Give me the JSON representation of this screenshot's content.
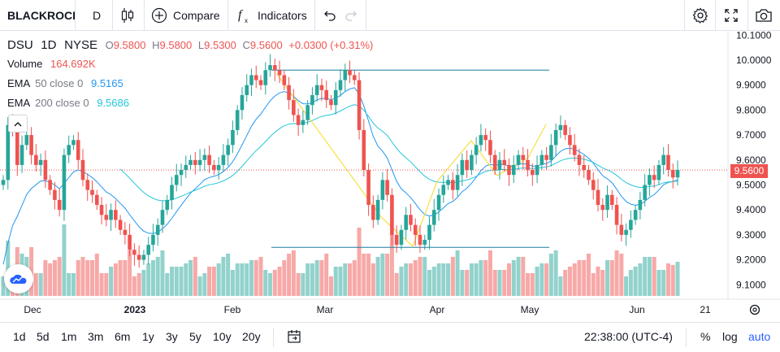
{
  "toolbar": {
    "symbol_search": "BLACKROCI",
    "interval": "D",
    "compare": "Compare",
    "indicators": "Indicators",
    "icons": [
      "candle-style-icon",
      "plus-circle-icon",
      "fx-icon",
      "undo-icon",
      "redo-icon",
      "gear-icon",
      "fullscreen-icon",
      "camera-icon"
    ]
  },
  "legend": {
    "symbol": "DSU",
    "interval": "1D",
    "exchange": "NYSE",
    "open_label": "O",
    "open": "9.5800",
    "high_label": "H",
    "high": "9.5800",
    "low_label": "L",
    "low": "9.5300",
    "close_label": "C",
    "close": "9.5600",
    "change": "+0.0300 (+0.31%)",
    "volume_label": "Volume",
    "volume": "164.692K",
    "ema50_label": "EMA",
    "ema50_params": "50 close 0",
    "ema50_value": "9.5165",
    "ema200_label": "EMA",
    "ema200_params": "200 close 0",
    "ema200_value": "9.5686"
  },
  "price_axis": {
    "ticks": [
      "10.1000",
      "10.0000",
      "9.9000",
      "9.8000",
      "9.7000",
      "9.6000",
      "9.5000",
      "9.4000",
      "9.3000",
      "9.2000",
      "9.1000"
    ],
    "last_price": "9.5600"
  },
  "time_axis": {
    "ticks": [
      "Dec",
      "2023",
      "Feb",
      "Mar",
      "Apr",
      "May",
      "Jun",
      "21"
    ]
  },
  "bottombar": {
    "ranges": [
      "1d",
      "5d",
      "1m",
      "3m",
      "6m",
      "1y",
      "3y",
      "5y",
      "10y",
      "20y"
    ],
    "time": "22:38:00 (UTC-4)",
    "percent": "%",
    "log": "log",
    "auto": "auto"
  },
  "colors": {
    "up": "#26a69a",
    "down": "#ef5350",
    "ema50": "#2196f3",
    "ema200": "#26c6da",
    "accent": "#2962ff"
  },
  "chart_data": {
    "type": "candlestick",
    "symbol": "DSU",
    "ylim": [
      9.05,
      10.13
    ],
    "x_range": [
      "Nov 2022",
      "Jun 2023"
    ],
    "last_price": 9.56,
    "horizontal_lines": [
      9.96,
      9.25
    ],
    "closes": [
      9.52,
      9.74,
      9.72,
      9.58,
      9.66,
      9.7,
      9.62,
      9.58,
      9.6,
      9.52,
      9.48,
      9.44,
      9.4,
      9.62,
      9.66,
      9.68,
      9.6,
      9.52,
      9.48,
      9.46,
      9.42,
      9.38,
      9.36,
      9.4,
      9.36,
      9.32,
      9.3,
      9.24,
      9.22,
      9.2,
      9.22,
      9.26,
      9.3,
      9.34,
      9.4,
      9.44,
      9.5,
      9.54,
      9.56,
      9.58,
      9.6,
      9.58,
      9.6,
      9.62,
      9.58,
      9.56,
      9.58,
      9.62,
      9.66,
      9.72,
      9.8,
      9.86,
      9.9,
      9.94,
      9.92,
      9.9,
      9.96,
      9.98,
      9.96,
      9.94,
      9.9,
      9.84,
      9.78,
      9.74,
      9.76,
      9.82,
      9.86,
      9.9,
      9.88,
      9.84,
      9.82,
      9.88,
      9.92,
      9.96,
      9.94,
      9.92,
      9.72,
      9.56,
      9.42,
      9.36,
      9.44,
      9.52,
      9.46,
      9.3,
      9.26,
      9.32,
      9.38,
      9.34,
      9.3,
      9.26,
      9.28,
      9.34,
      9.4,
      9.46,
      9.5,
      9.52,
      9.48,
      9.54,
      9.6,
      9.56,
      9.62,
      9.66,
      9.7,
      9.68,
      9.62,
      9.56,
      9.6,
      9.58,
      9.54,
      9.58,
      9.62,
      9.6,
      9.56,
      9.54,
      9.58,
      9.62,
      9.6,
      9.66,
      9.72,
      9.74,
      9.7,
      9.66,
      9.62,
      9.58,
      9.56,
      9.52,
      9.48,
      9.42,
      9.4,
      9.46,
      9.42,
      9.34,
      9.3,
      9.32,
      9.36,
      9.4,
      9.44,
      9.5,
      9.54,
      9.52,
      9.58,
      9.62,
      9.56,
      9.53,
      9.56
    ]
  }
}
